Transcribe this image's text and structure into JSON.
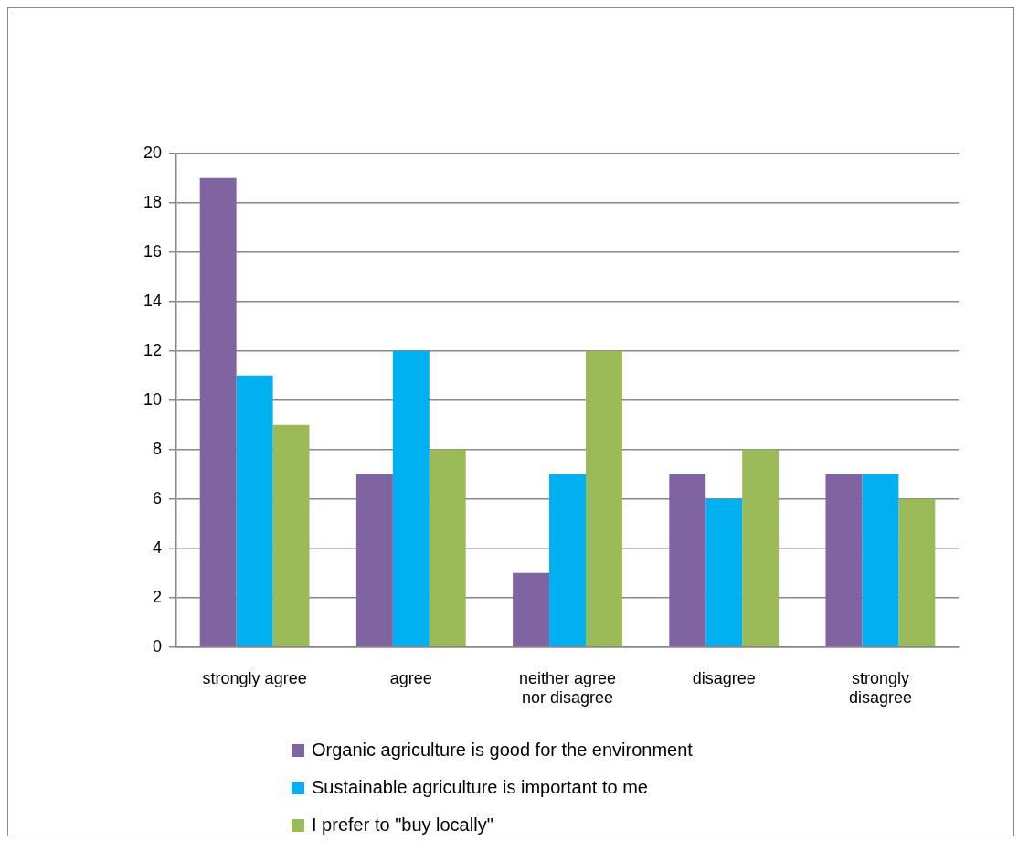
{
  "chart_data": {
    "type": "bar",
    "categories": [
      "strongly agree",
      "agree",
      "neither agree nor disagree",
      "disagree",
      "strongly disagree"
    ],
    "series": [
      {
        "name": "Organic agriculture is good for the environment",
        "color": "#8064a2",
        "values": [
          19,
          7,
          3,
          7,
          7
        ]
      },
      {
        "name": "Sustainable agriculture is important to me",
        "color": "#00b0f0",
        "values": [
          11,
          12,
          7,
          6,
          7
        ]
      },
      {
        "name": "I prefer to \"buy locally\"",
        "color": "#9bbb59",
        "values": [
          9,
          8,
          12,
          8,
          6
        ]
      }
    ],
    "ylim": [
      0,
      20
    ],
    "yticks": [
      0,
      2,
      4,
      6,
      8,
      10,
      12,
      14,
      16,
      18,
      20
    ],
    "grid": "y",
    "legend": "bottom"
  }
}
